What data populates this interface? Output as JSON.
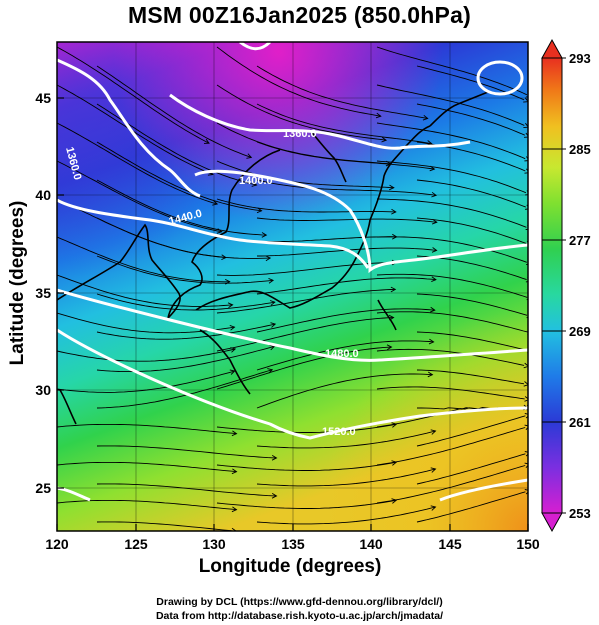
{
  "title": "MSM 00Z16Jan2025 (850.0hPa)",
  "xaxis": {
    "label": "Longitude (degrees)",
    "ticks": [
      "120",
      "125",
      "130",
      "135",
      "140",
      "145",
      "150"
    ],
    "range": [
      120,
      150
    ]
  },
  "yaxis": {
    "label": "Latitude  (degrees)",
    "ticks": [
      "25",
      "30",
      "35",
      "40",
      "45"
    ],
    "range": [
      22.5,
      47.5
    ]
  },
  "colorbar": {
    "ticks": [
      "293",
      "285",
      "277",
      "269",
      "261",
      "253"
    ],
    "range": [
      253,
      293
    ],
    "colors": [
      "#d61fd1",
      "#7b2fe0",
      "#2b3ad6",
      "#1f7be8",
      "#22c0e0",
      "#28d8a0",
      "#30d050",
      "#7fe030",
      "#c8e830",
      "#f0c020",
      "#f07818",
      "#e83020"
    ]
  },
  "contours": [
    {
      "label": "1360.0"
    },
    {
      "label": "1400.0"
    },
    {
      "label": "1440.0"
    },
    {
      "label": "1480.0"
    },
    {
      "label": "1520.0"
    },
    {
      "label": "1360.0"
    }
  ],
  "credits": {
    "line1": "Drawing by DCL (https://www.gfd-dennou.org/library/dcl/)",
    "line2": "Data from http://database.rish.kyoto-u.ac.jp/arch/jmadata/"
  }
}
